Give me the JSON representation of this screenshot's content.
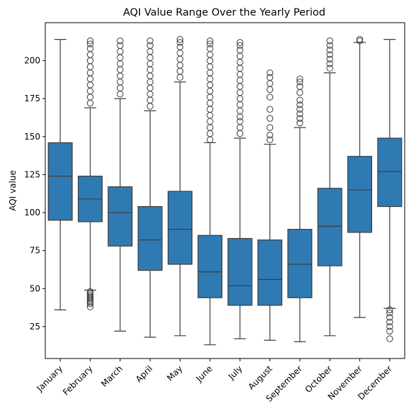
{
  "chart_data": {
    "type": "box",
    "title": "AQI Value Range Over the Yearly Period",
    "xlabel": "",
    "ylabel": "AQI value",
    "ylim": [
      4,
      225
    ],
    "yticks": [
      25,
      50,
      75,
      100,
      125,
      150,
      175,
      200
    ],
    "grid": false,
    "box_color": "#2f7ab3",
    "line_color": "#3d3d3d",
    "categories": [
      "January",
      "February",
      "March",
      "April",
      "May",
      "June",
      "July",
      "August",
      "September",
      "October",
      "November",
      "December"
    ],
    "boxes": [
      {
        "q1": 95,
        "median": 124,
        "q3": 146,
        "whisker_low": 36,
        "whisker_high": 214,
        "outliers": []
      },
      {
        "q1": 94,
        "median": 109,
        "q3": 124,
        "whisker_low": 49,
        "whisker_high": 169,
        "outliers": [
          38,
          40,
          41,
          42,
          43,
          44,
          45,
          46,
          47,
          48,
          172,
          176,
          180,
          184,
          188,
          192,
          196,
          200,
          204,
          208,
          211,
          213
        ]
      },
      {
        "q1": 78,
        "median": 100,
        "q3": 117,
        "whisker_low": 22,
        "whisker_high": 175,
        "outliers": [
          178,
          182,
          186,
          190,
          194,
          198,
          202,
          206,
          210,
          213
        ]
      },
      {
        "q1": 62,
        "median": 82,
        "q3": 104,
        "whisker_low": 18,
        "whisker_high": 167,
        "outliers": [
          170,
          174,
          178,
          182,
          186,
          190,
          194,
          198,
          202,
          206,
          210,
          213
        ]
      },
      {
        "q1": 66,
        "median": 89,
        "q3": 114,
        "whisker_low": 19,
        "whisker_high": 186,
        "outliers": [
          189,
          193,
          197,
          201,
          205,
          209,
          212,
          214
        ]
      },
      {
        "q1": 44,
        "median": 61,
        "q3": 85,
        "whisker_low": 13,
        "whisker_high": 146,
        "outliers": [
          148,
          152,
          156,
          160,
          164,
          168,
          172,
          176,
          180,
          184,
          188,
          192,
          196,
          200,
          204,
          208,
          211,
          213
        ]
      },
      {
        "q1": 39,
        "median": 52,
        "q3": 83,
        "whisker_low": 17,
        "whisker_high": 149,
        "outliers": [
          152,
          156,
          160,
          163,
          167,
          171,
          175,
          179,
          183,
          187,
          191,
          195,
          199,
          203,
          207,
          210,
          212
        ]
      },
      {
        "q1": 39,
        "median": 56,
        "q3": 82,
        "whisker_low": 16,
        "whisker_high": 145,
        "outliers": [
          148,
          151,
          156,
          162,
          168,
          176,
          181,
          185,
          189,
          192
        ]
      },
      {
        "q1": 44,
        "median": 66,
        "q3": 89,
        "whisker_low": 15,
        "whisker_high": 156,
        "outliers": [
          159,
          162,
          165,
          168,
          171,
          174,
          179,
          183,
          186,
          188
        ]
      },
      {
        "q1": 65,
        "median": 91,
        "q3": 116,
        "whisker_low": 19,
        "whisker_high": 192,
        "outliers": [
          195,
          198,
          201,
          204,
          207,
          210,
          213
        ]
      },
      {
        "q1": 87,
        "median": 115,
        "q3": 137,
        "whisker_low": 31,
        "whisker_high": 212,
        "outliers": [
          213,
          214
        ]
      },
      {
        "q1": 104,
        "median": 127,
        "q3": 149,
        "whisker_low": 37,
        "whisker_high": 214,
        "outliers": [
          17,
          22,
          25,
          28,
          31,
          34,
          36
        ]
      }
    ]
  }
}
